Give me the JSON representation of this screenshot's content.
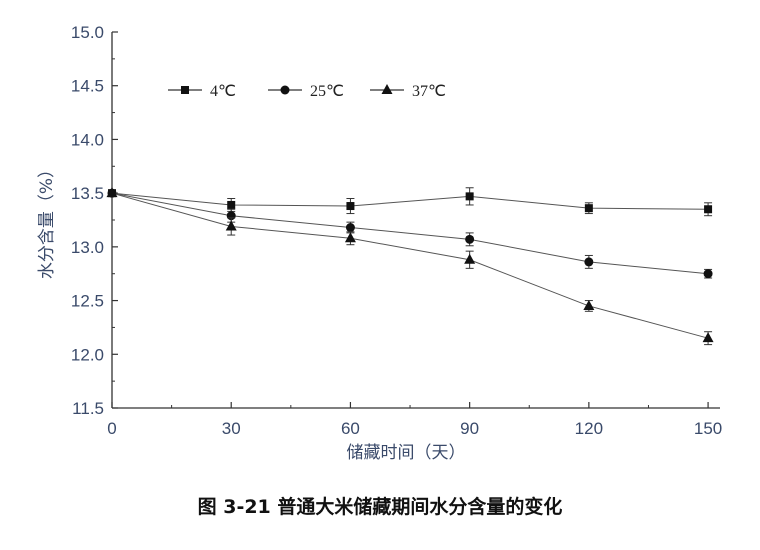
{
  "caption": "图 3-21 普通大米储藏期间水分含量的变化",
  "chart_data": {
    "type": "line",
    "title": "",
    "xlabel": "储藏时间（天）",
    "ylabel": "水分含量（%）",
    "x": [
      0,
      30,
      60,
      90,
      120,
      150
    ],
    "xlim": [
      0,
      153
    ],
    "ylim": [
      11.5,
      15.0
    ],
    "x_ticks": [
      "0",
      "30",
      "60",
      "90",
      "120",
      "150"
    ],
    "y_ticks": [
      "11.5",
      "12.0",
      "12.5",
      "13.0",
      "13.5",
      "14.0",
      "14.5",
      "15.0"
    ],
    "legend_position": "top-left",
    "grid": false,
    "series": [
      {
        "name": "4℃",
        "marker": "square",
        "values": [
          13.5,
          13.39,
          13.38,
          13.47,
          13.36,
          13.35
        ],
        "errors": [
          0.0,
          0.06,
          0.07,
          0.08,
          0.05,
          0.06
        ]
      },
      {
        "name": "25℃",
        "marker": "circle",
        "values": [
          13.5,
          13.29,
          13.18,
          13.07,
          12.86,
          12.75
        ],
        "errors": [
          0.0,
          0.06,
          0.05,
          0.06,
          0.06,
          0.04
        ]
      },
      {
        "name": "37℃",
        "marker": "triangle",
        "values": [
          13.5,
          13.19,
          13.08,
          12.88,
          12.45,
          12.15
        ],
        "errors": [
          0.0,
          0.08,
          0.06,
          0.08,
          0.05,
          0.06
        ]
      }
    ]
  }
}
